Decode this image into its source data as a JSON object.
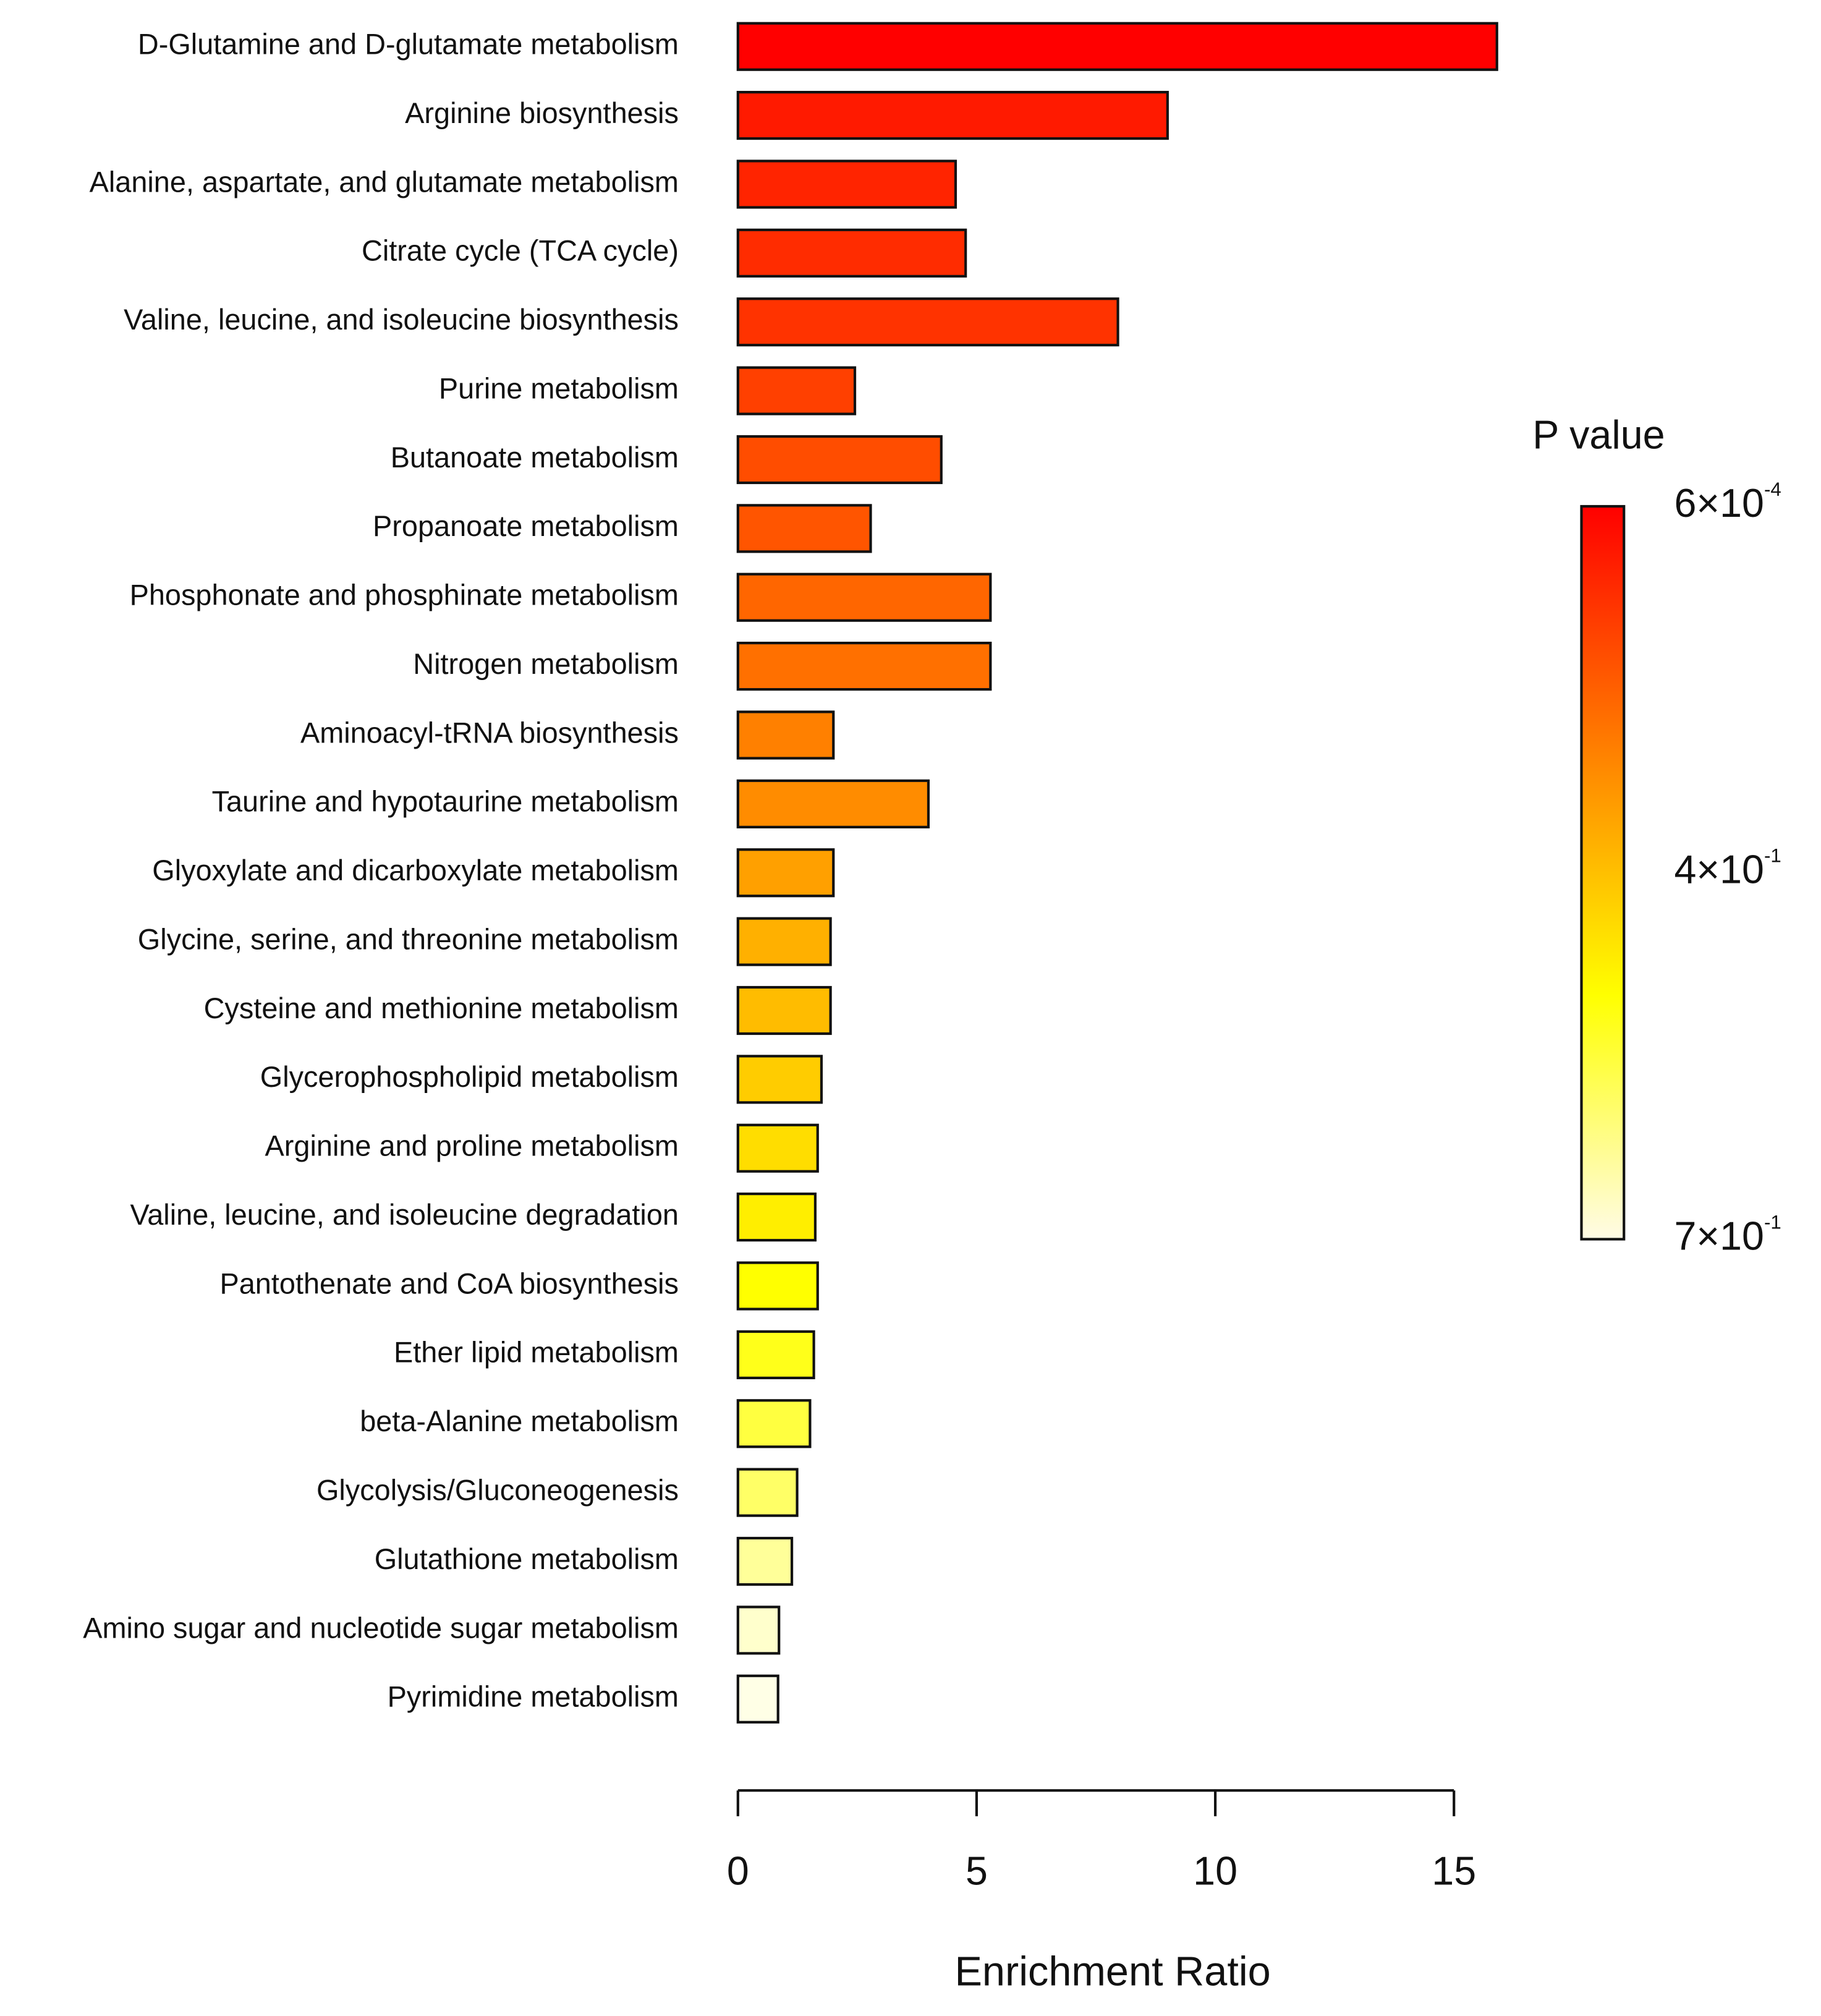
{
  "chart_data": {
    "type": "barh",
    "xlabel": "Enrichment Ratio",
    "categories": [
      "D-Glutamine and D-glutamate metabolism",
      "Arginine biosynthesis",
      "Alanine, aspartate, and glutamate metabolism",
      "Citrate cycle (TCA cycle)",
      "Valine, leucine, and isoleucine biosynthesis",
      "Purine metabolism",
      "Butanoate metabolism",
      "Propanoate metabolism",
      "Phosphonate and phosphinate metabolism",
      "Nitrogen metabolism",
      "Aminoacyl-tRNA biosynthesis",
      "Taurine and hypotaurine metabolism",
      "Glyoxylate and dicarboxylate metabolism",
      "Glycine, serine, and threonine metabolism",
      "Cysteine and methionine metabolism",
      "Glycerophospholipid metabolism",
      "Arginine and proline metabolism",
      "Valine, leucine, and isoleucine degradation",
      "Pantothenate and CoA biosynthesis",
      "Ether lipid metabolism",
      "beta-Alanine metabolism",
      "Glycolysis/Gluconeogenesis",
      "Glutathione metabolism",
      "Amino sugar and nucleotide sugar metabolism",
      "Pyrimidine metabolism"
    ],
    "values": [
      15.9,
      9.0,
      4.56,
      4.77,
      7.96,
      2.45,
      4.26,
      2.78,
      5.29,
      5.29,
      2.0,
      3.99,
      2.0,
      1.94,
      1.94,
      1.75,
      1.67,
      1.62,
      1.67,
      1.59,
      1.51,
      1.24,
      1.13,
      0.86,
      0.84
    ],
    "colors": [
      "#ff0000",
      "#ff1a00",
      "#ff2400",
      "#ff2c00",
      "#ff3300",
      "#ff4000",
      "#ff4d00",
      "#ff5500",
      "#ff6600",
      "#ff7000",
      "#ff8000",
      "#ff8c00",
      "#ffa000",
      "#ffb000",
      "#ffbc00",
      "#ffcc00",
      "#ffdd00",
      "#ffee00",
      "#ffff00",
      "#ffff1a",
      "#ffff40",
      "#ffff66",
      "#ffff99",
      "#ffffcc",
      "#ffffe6"
    ],
    "xlim": [
      0,
      15
    ],
    "xticks": [
      0,
      5,
      10,
      15
    ],
    "colorbar": {
      "title": "P value",
      "colors": [
        "#ff0000",
        "#ff8000",
        "#ffff00",
        "#fffbe6"
      ],
      "labels": [
        {
          "base": "6×10",
          "exp": "-4"
        },
        {
          "base": "4×10",
          "exp": "-1"
        },
        {
          "base": "7×10",
          "exp": "-1"
        }
      ]
    }
  }
}
